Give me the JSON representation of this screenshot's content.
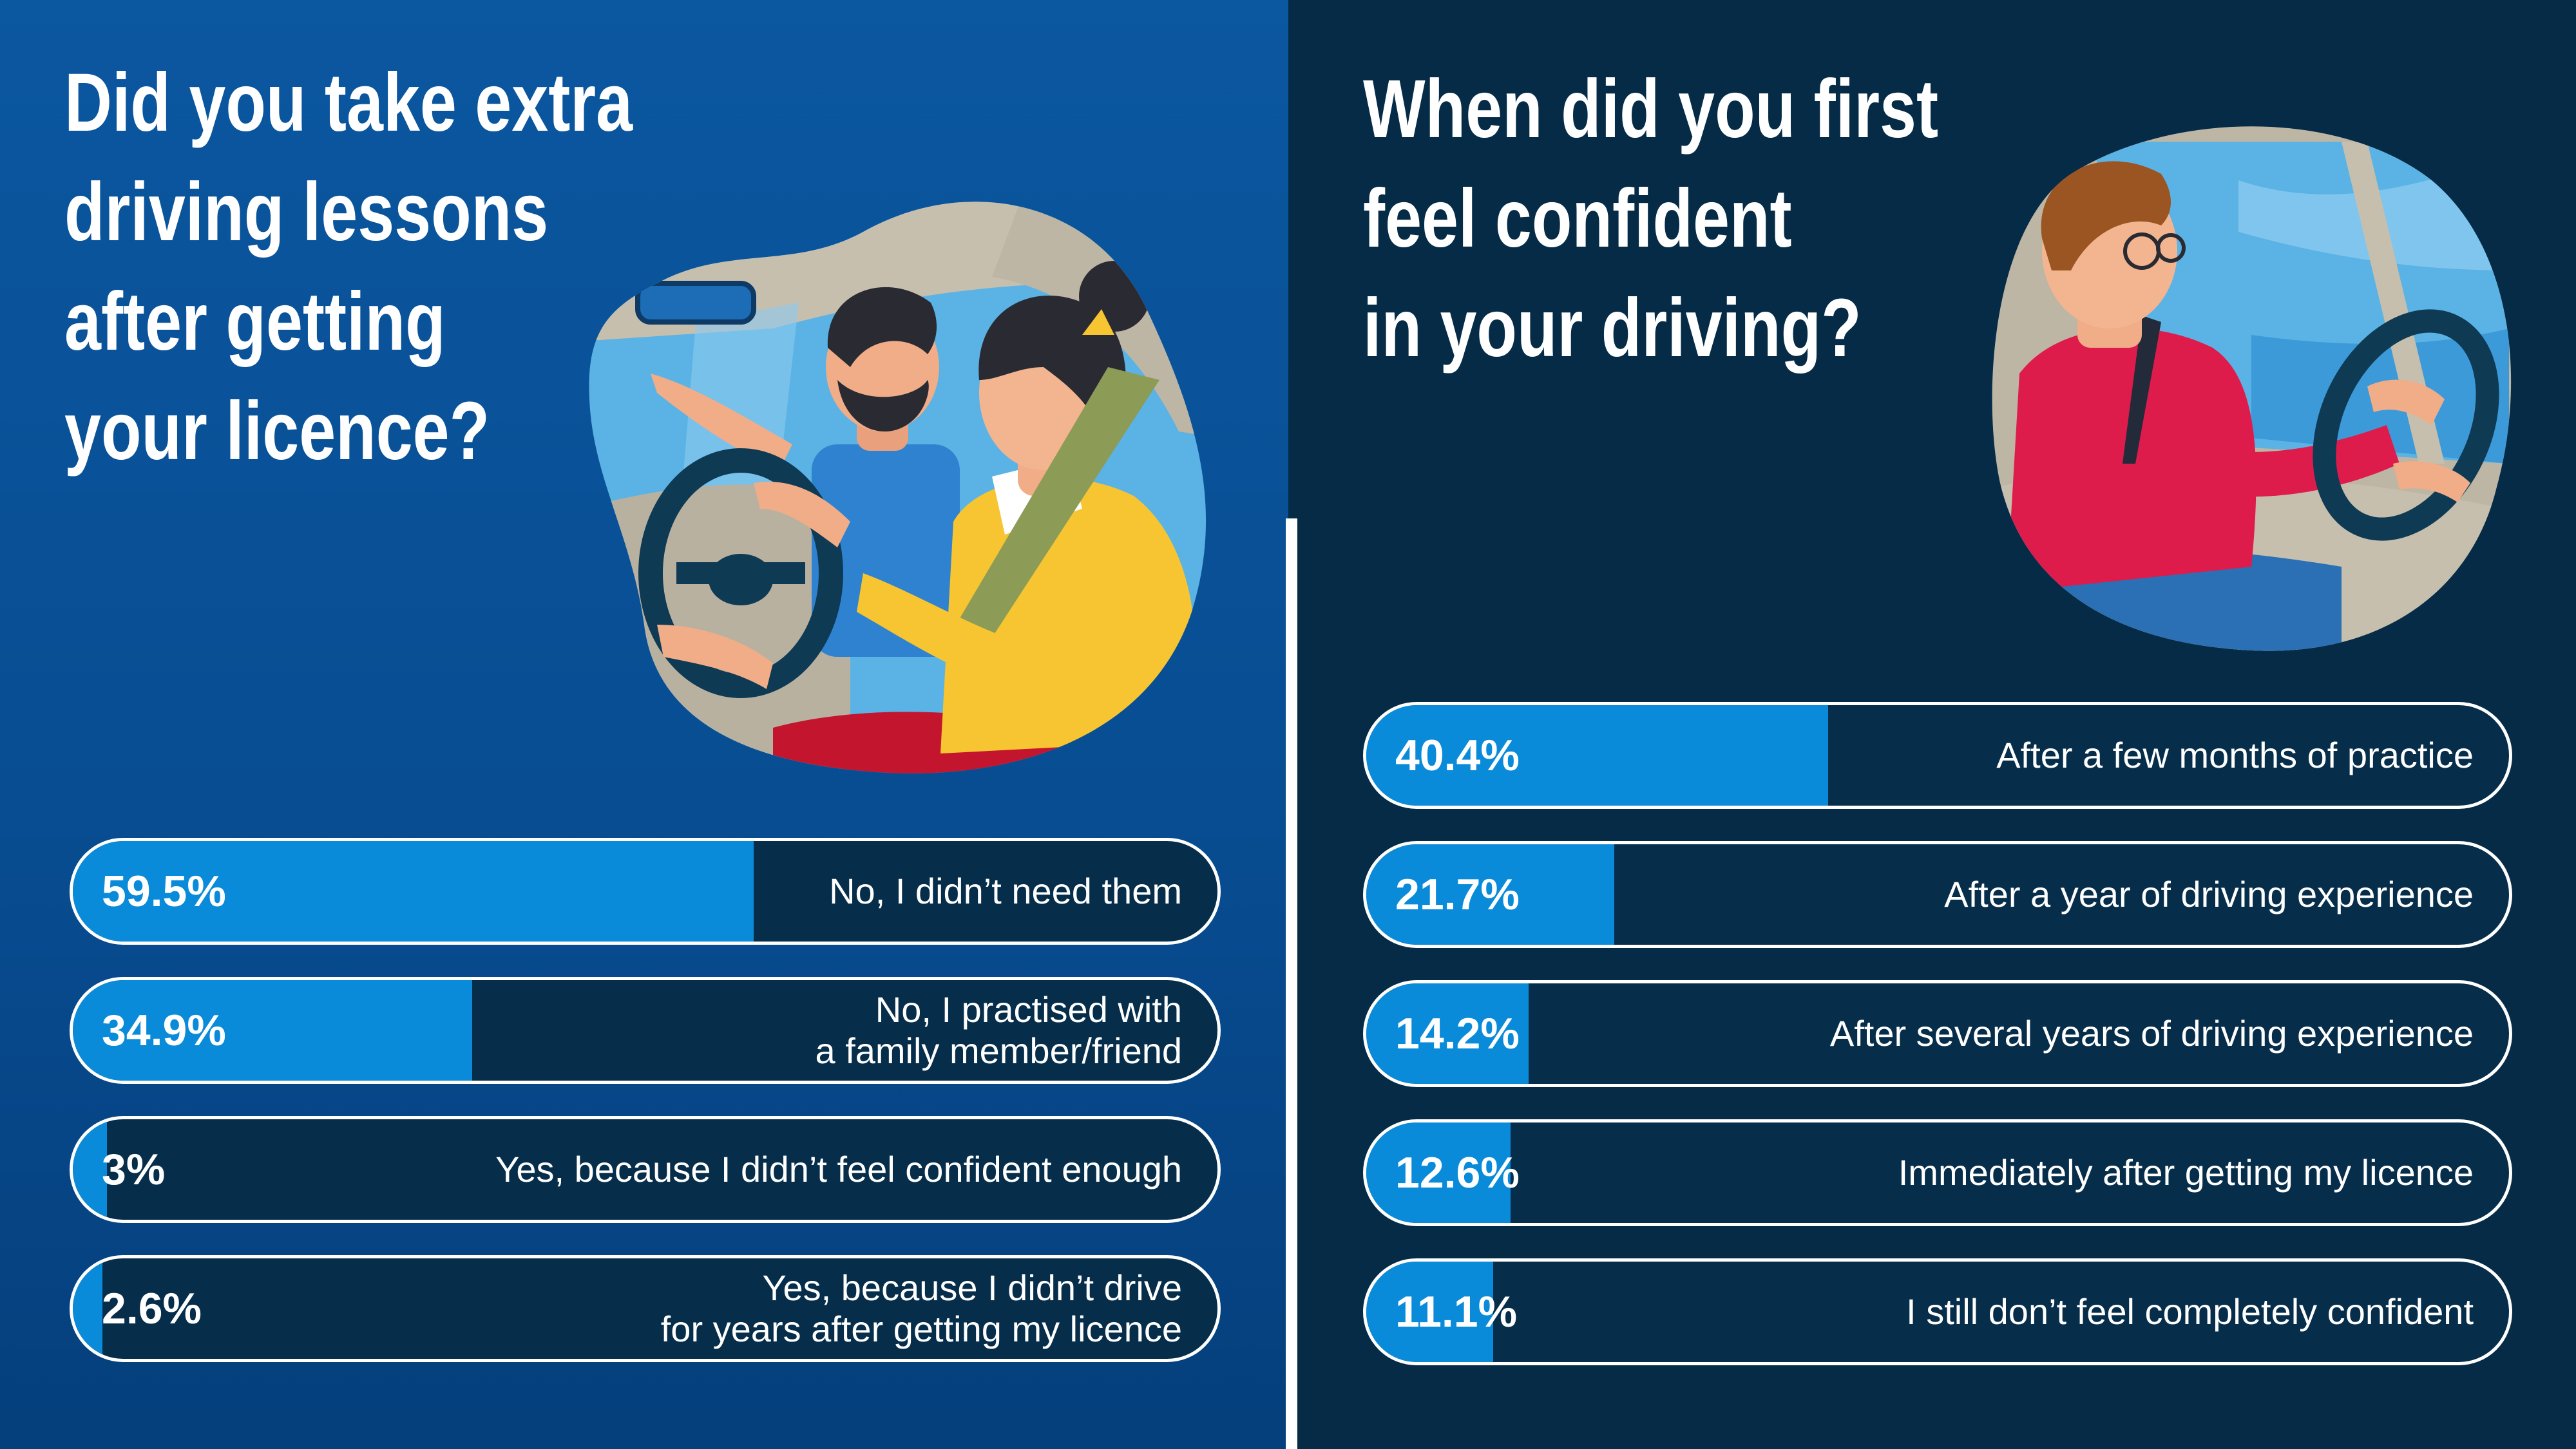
{
  "colors": {
    "left_bg": "#0b57a0",
    "right_bg": "#052b47",
    "bar_fill": "#0a8bd9",
    "bar_track": "#062d4a",
    "bar_border": "#ffffff"
  },
  "chart_data": [
    {
      "type": "bar",
      "orientation": "horizontal",
      "title": "Did you take extra driving lessons after getting your licence?",
      "title_lines": [
        "Did you take extra",
        "driving lessons",
        "after getting",
        "your licence?"
      ],
      "unit": "%",
      "categories": [
        [
          "No, I didn’t need them"
        ],
        [
          "No, I practised with",
          "a family member/friend"
        ],
        [
          "Yes, because I didn’t feel confident enough"
        ],
        [
          "Yes, because I didn’t drive",
          "for years after getting my licence"
        ]
      ],
      "values": [
        59.5,
        34.9,
        3,
        2.6
      ],
      "value_labels": [
        "59.5%",
        "34.9%",
        "3%",
        "2.6%"
      ],
      "xlim": [
        0,
        100
      ]
    },
    {
      "type": "bar",
      "orientation": "horizontal",
      "title": "When did you first feel confident in your driving?",
      "title_lines": [
        "When did you first",
        "feel confident",
        "in your driving?"
      ],
      "unit": "%",
      "categories": [
        [
          "After a few months of practice"
        ],
        [
          "After a year of driving experience"
        ],
        [
          "After several years of driving experience"
        ],
        [
          "Immediately after getting my licence"
        ],
        [
          "I still don’t feel completely confident"
        ]
      ],
      "values": [
        40.4,
        21.7,
        14.2,
        12.6,
        11.1
      ],
      "value_labels": [
        "40.4%",
        "21.7%",
        "14.2%",
        "12.6%",
        "11.1%"
      ],
      "xlim": [
        0,
        100
      ]
    }
  ]
}
